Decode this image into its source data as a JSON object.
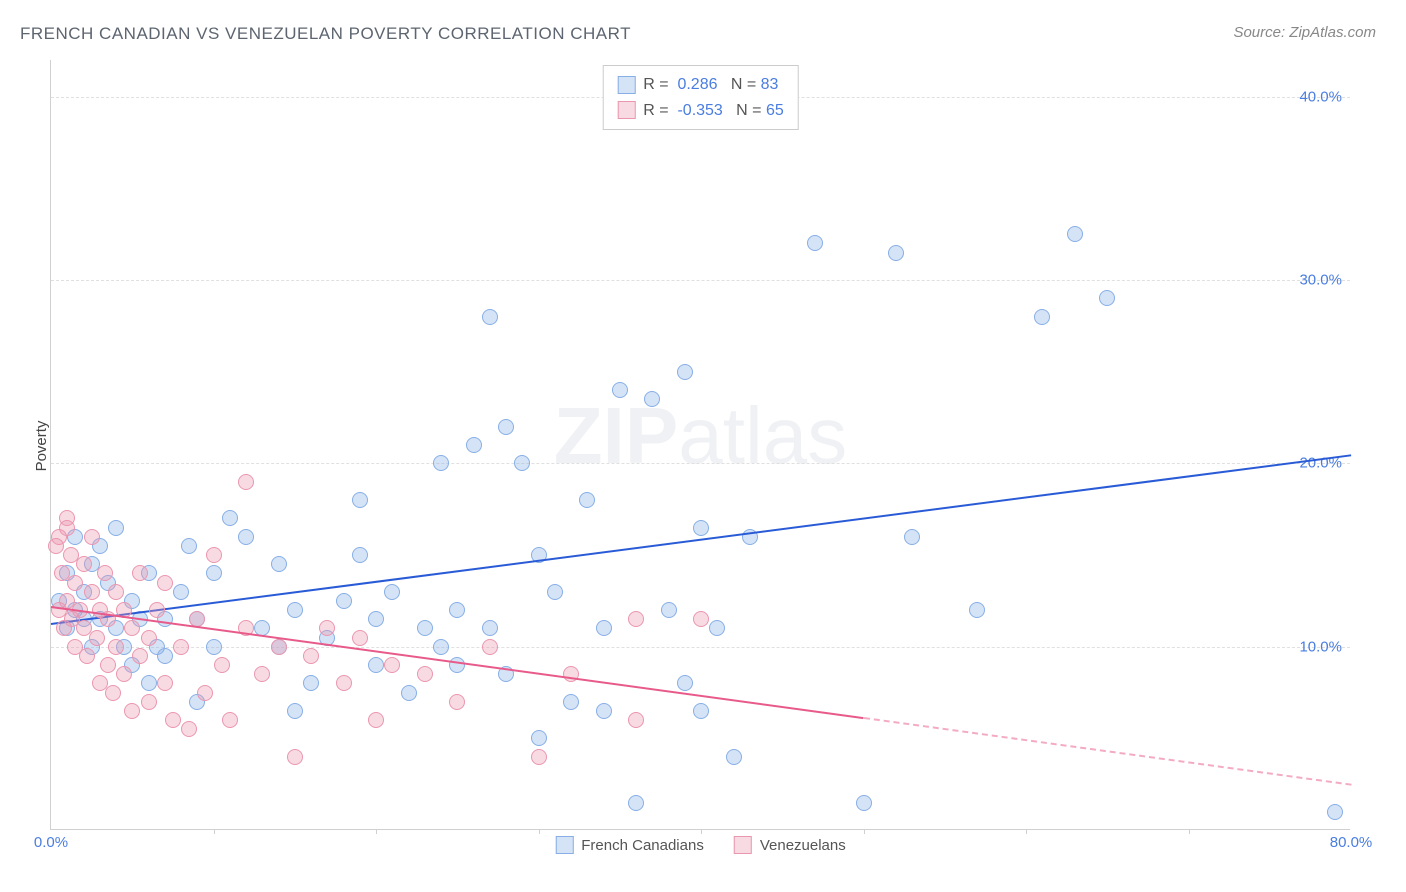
{
  "title": "FRENCH CANADIAN VS VENEZUELAN POVERTY CORRELATION CHART",
  "source": "Source: ZipAtlas.com",
  "watermark_bold": "ZIP",
  "watermark_light": "atlas",
  "ylabel": "Poverty",
  "chart": {
    "type": "scatter",
    "xlim": [
      0,
      80
    ],
    "ylim": [
      0,
      42
    ],
    "yticks": [
      {
        "value": 10,
        "label": "10.0%"
      },
      {
        "value": 20,
        "label": "20.0%"
      },
      {
        "value": 30,
        "label": "30.0%"
      },
      {
        "value": 40,
        "label": "40.0%"
      }
    ],
    "xticks": [
      {
        "value": 0,
        "label": "0.0%"
      },
      {
        "value": 80,
        "label": "80.0%"
      }
    ],
    "xminor_step": 10,
    "grid_color": "#e0e0e0",
    "background_color": "#ffffff",
    "marker_radius": 8,
    "marker_stroke_width": 1.5,
    "series": [
      {
        "id": "french_canadians",
        "label": "French Canadians",
        "color_fill": "rgba(135,175,230,0.35)",
        "color_stroke": "#87afe6",
        "trend": {
          "x1": 0,
          "y1": 11.3,
          "x2": 80,
          "y2": 20.5,
          "color": "#2a5bd7",
          "solid_to_x": 80,
          "width": 2.5
        },
        "R_label": "R =",
        "R": "0.286",
        "N_label": "N =",
        "N": "83",
        "points": [
          [
            0.5,
            12.5
          ],
          [
            1,
            11
          ],
          [
            1,
            14
          ],
          [
            1.5,
            12
          ],
          [
            1.5,
            16
          ],
          [
            2,
            11.5
          ],
          [
            2,
            13
          ],
          [
            2.5,
            10
          ],
          [
            2.5,
            14.5
          ],
          [
            3,
            15.5
          ],
          [
            3,
            11.5
          ],
          [
            3.5,
            13.5
          ],
          [
            4,
            11
          ],
          [
            4,
            16.5
          ],
          [
            4.5,
            10
          ],
          [
            5,
            9
          ],
          [
            5,
            12.5
          ],
          [
            5.5,
            11.5
          ],
          [
            6,
            14
          ],
          [
            6,
            8
          ],
          [
            6.5,
            10
          ],
          [
            7,
            11.5
          ],
          [
            7,
            9.5
          ],
          [
            8,
            13
          ],
          [
            8.5,
            15.5
          ],
          [
            9,
            11.5
          ],
          [
            9,
            7
          ],
          [
            10,
            14
          ],
          [
            10,
            10
          ],
          [
            11,
            17
          ],
          [
            12,
            16
          ],
          [
            13,
            11
          ],
          [
            14,
            14.5
          ],
          [
            14,
            10
          ],
          [
            15,
            12
          ],
          [
            15,
            6.5
          ],
          [
            16,
            8
          ],
          [
            17,
            10.5
          ],
          [
            18,
            12.5
          ],
          [
            19,
            15
          ],
          [
            19,
            18
          ],
          [
            20,
            11.5
          ],
          [
            20,
            9
          ],
          [
            21,
            13
          ],
          [
            22,
            7.5
          ],
          [
            23,
            11
          ],
          [
            24,
            10
          ],
          [
            24,
            20
          ],
          [
            25,
            12
          ],
          [
            25,
            9
          ],
          [
            26,
            21
          ],
          [
            27,
            11
          ],
          [
            27,
            28
          ],
          [
            28,
            22
          ],
          [
            28,
            8.5
          ],
          [
            29,
            20
          ],
          [
            30,
            5
          ],
          [
            30,
            15
          ],
          [
            31,
            13
          ],
          [
            32,
            7
          ],
          [
            33,
            18
          ],
          [
            34,
            6.5
          ],
          [
            34,
            11
          ],
          [
            35,
            24
          ],
          [
            36,
            1.5
          ],
          [
            37,
            23.5
          ],
          [
            38,
            12
          ],
          [
            39,
            25
          ],
          [
            39,
            8
          ],
          [
            40,
            16.5
          ],
          [
            40,
            6.5
          ],
          [
            41,
            11
          ],
          [
            42,
            4
          ],
          [
            43,
            16
          ],
          [
            47,
            32
          ],
          [
            50,
            1.5
          ],
          [
            52,
            31.5
          ],
          [
            53,
            16
          ],
          [
            57,
            12
          ],
          [
            61,
            28
          ],
          [
            63,
            32.5
          ],
          [
            65,
            29
          ],
          [
            79,
            1
          ]
        ]
      },
      {
        "id": "venezuelans",
        "label": "Venezuelans",
        "color_fill": "rgba(235,150,175,0.35)",
        "color_stroke": "#eb96af",
        "trend": {
          "x1": 0,
          "y1": 12.2,
          "x2": 80,
          "y2": 2.5,
          "color": "#e85a8a",
          "solid_to_x": 50,
          "width": 2
        },
        "R_label": "R =",
        "R": "-0.353",
        "N_label": "N =",
        "N": "65",
        "points": [
          [
            0.3,
            15.5
          ],
          [
            0.5,
            12
          ],
          [
            0.5,
            16
          ],
          [
            0.7,
            14
          ],
          [
            0.8,
            11
          ],
          [
            1,
            16.5
          ],
          [
            1,
            12.5
          ],
          [
            1,
            17
          ],
          [
            1.2,
            15
          ],
          [
            1.3,
            11.5
          ],
          [
            1.5,
            10
          ],
          [
            1.5,
            13.5
          ],
          [
            1.8,
            12
          ],
          [
            2,
            14.5
          ],
          [
            2,
            11
          ],
          [
            2.2,
            9.5
          ],
          [
            2.5,
            13
          ],
          [
            2.5,
            16
          ],
          [
            2.8,
            10.5
          ],
          [
            3,
            12
          ],
          [
            3,
            8
          ],
          [
            3.3,
            14
          ],
          [
            3.5,
            11.5
          ],
          [
            3.5,
            9
          ],
          [
            3.8,
            7.5
          ],
          [
            4,
            10
          ],
          [
            4,
            13
          ],
          [
            4.5,
            12
          ],
          [
            4.5,
            8.5
          ],
          [
            5,
            11
          ],
          [
            5,
            6.5
          ],
          [
            5.5,
            9.5
          ],
          [
            5.5,
            14
          ],
          [
            6,
            7
          ],
          [
            6,
            10.5
          ],
          [
            6.5,
            12
          ],
          [
            7,
            8
          ],
          [
            7,
            13.5
          ],
          [
            7.5,
            6
          ],
          [
            8,
            10
          ],
          [
            8.5,
            5.5
          ],
          [
            9,
            11.5
          ],
          [
            9.5,
            7.5
          ],
          [
            10,
            15
          ],
          [
            10.5,
            9
          ],
          [
            11,
            6
          ],
          [
            12,
            11
          ],
          [
            12,
            19
          ],
          [
            13,
            8.5
          ],
          [
            14,
            10
          ],
          [
            15,
            4
          ],
          [
            16,
            9.5
          ],
          [
            17,
            11
          ],
          [
            18,
            8
          ],
          [
            19,
            10.5
          ],
          [
            20,
            6
          ],
          [
            21,
            9
          ],
          [
            23,
            8.5
          ],
          [
            25,
            7
          ],
          [
            27,
            10
          ],
          [
            30,
            4
          ],
          [
            32,
            8.5
          ],
          [
            36,
            11.5
          ],
          [
            36,
            6
          ],
          [
            40,
            11.5
          ]
        ]
      }
    ]
  }
}
